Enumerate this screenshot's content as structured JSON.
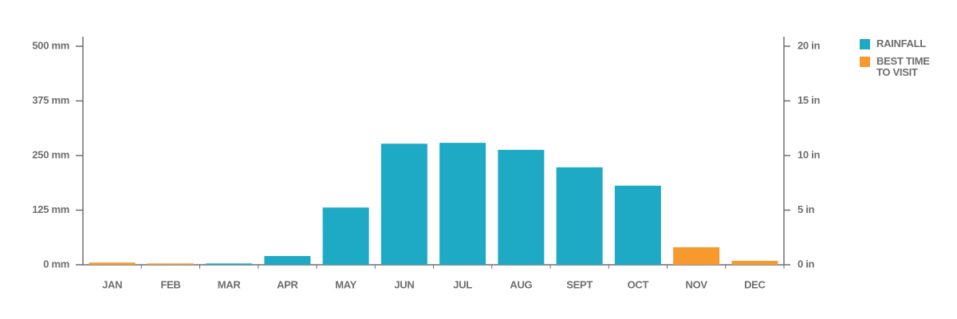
{
  "chart_data": {
    "type": "bar",
    "categories": [
      "JAN",
      "FEB",
      "MAR",
      "APR",
      "MAY",
      "JUN",
      "JUL",
      "AUG",
      "SEPT",
      "OCT",
      "NOV",
      "DEC"
    ],
    "series": [
      {
        "name": "RAINFALL",
        "color": "#1eaac4",
        "values": [
          null,
          null,
          3,
          20,
          131,
          277,
          279,
          263,
          223,
          181,
          null,
          null
        ]
      },
      {
        "name": "BEST TIME TO VISIT",
        "color": "#f7992d",
        "values": [
          5,
          3,
          null,
          null,
          null,
          null,
          null,
          null,
          null,
          null,
          40,
          9
        ]
      }
    ],
    "ylim": [
      0,
      500
    ],
    "yticks": [
      {
        "value": 0,
        "label": "0 mm"
      },
      {
        "value": 125,
        "label": "125 mm"
      },
      {
        "value": 250,
        "label": "250 mm"
      },
      {
        "value": 375,
        "label": "375 mm"
      },
      {
        "value": 500,
        "label": "500 mm"
      }
    ],
    "y2lim": [
      0,
      20
    ],
    "y2ticks": [
      {
        "value": 0,
        "label": "0 in"
      },
      {
        "value": 5,
        "label": "5 in"
      },
      {
        "value": 10,
        "label": "10 in"
      },
      {
        "value": 15,
        "label": "15 in"
      },
      {
        "value": 20,
        "label": "20 in"
      }
    ],
    "legend": "right"
  }
}
